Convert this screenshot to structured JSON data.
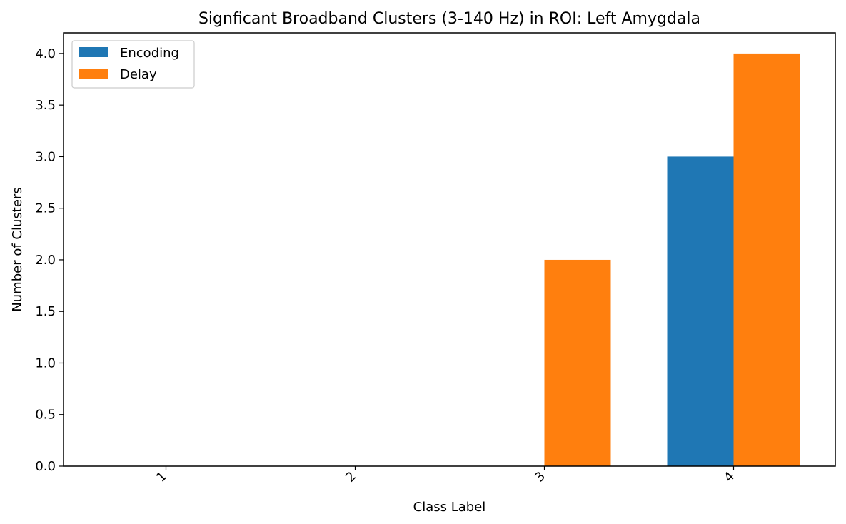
{
  "chart_data": {
    "type": "bar",
    "title": "Signficant Broadband Clusters (3-140 Hz) in ROI: Left Amygdala",
    "xlabel": "Class Label",
    "ylabel": "Number of Clusters",
    "categories": [
      "1",
      "2",
      "3",
      "4"
    ],
    "series": [
      {
        "name": "Encoding",
        "values": [
          0,
          0,
          0,
          3
        ],
        "color": "#1f77b4"
      },
      {
        "name": "Delay",
        "values": [
          0,
          0,
          2,
          4
        ],
        "color": "#ff7f0e"
      }
    ],
    "ylim": [
      0,
      4.2
    ],
    "yticks": [
      "0.0",
      "0.5",
      "1.0",
      "1.5",
      "2.0",
      "2.5",
      "3.0",
      "3.5",
      "4.0"
    ],
    "grid": false,
    "legend_position": "top-left"
  }
}
